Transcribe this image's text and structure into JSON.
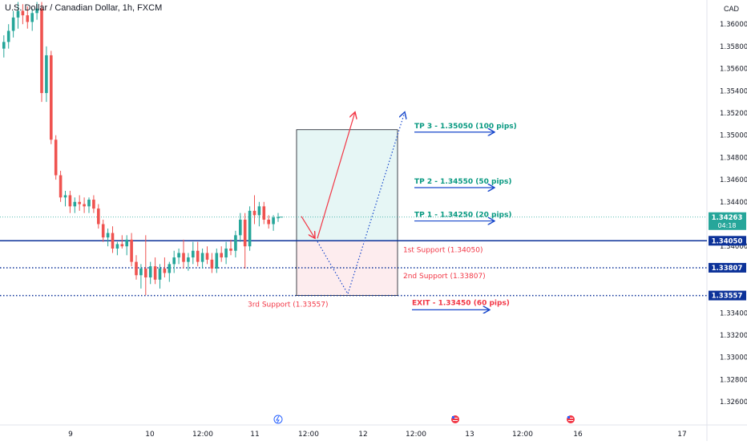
{
  "header": {
    "symbol_line": "U.S. Dollar / Canadian Dollar, 1h, FXCM",
    "currency": "CAD"
  },
  "colors": {
    "up": "#26a69a",
    "down": "#ef5350",
    "line_blue": "#0c3299",
    "arrow_red": "#f23645",
    "arrow_blue": "#1848cc",
    "tp_text": "#089981",
    "support_text": "#f23645",
    "target_box": "#e6f6f5",
    "stop_box": "#fdecee"
  },
  "chart_data": {
    "type": "candlestick",
    "symbol": "USDCAD",
    "interval": "1h",
    "y_axis": {
      "ticks": [
        "1.36000",
        "1.35800",
        "1.35600",
        "1.35400",
        "1.35200",
        "1.35000",
        "1.34800",
        "1.34600",
        "1.34400",
        "1.34000",
        "1.33400",
        "1.33200",
        "1.33000",
        "1.32800",
        "1.32600"
      ],
      "range": [
        1.325,
        1.3616
      ]
    },
    "x_axis": {
      "ticks": [
        "9",
        "10",
        "12:00",
        "11",
        "12:00",
        "12",
        "12:00",
        "13",
        "12:00",
        "16",
        "17"
      ]
    },
    "candles": [
      [
        1.3578,
        1.359,
        1.357,
        1.3584
      ],
      [
        1.3584,
        1.36,
        1.3578,
        1.3594
      ],
      [
        1.3594,
        1.3612,
        1.3588,
        1.3606
      ],
      [
        1.3606,
        1.362,
        1.3596,
        1.3612
      ],
      [
        1.3612,
        1.3618,
        1.36,
        1.3608
      ],
      [
        1.3608,
        1.3616,
        1.3596,
        1.3602
      ],
      [
        1.3602,
        1.3614,
        1.3594,
        1.361
      ],
      [
        1.361,
        1.362,
        1.3604,
        1.3614
      ],
      [
        1.3614,
        1.362,
        1.353,
        1.3538
      ],
      [
        1.3538,
        1.358,
        1.353,
        1.3572
      ],
      [
        1.3572,
        1.3576,
        1.3492,
        1.3496
      ],
      [
        1.3496,
        1.35,
        1.346,
        1.3464
      ],
      [
        1.3464,
        1.3468,
        1.344,
        1.3444
      ],
      [
        1.3444,
        1.345,
        1.3436,
        1.3446
      ],
      [
        1.3446,
        1.345,
        1.343,
        1.3436
      ],
      [
        1.3436,
        1.3444,
        1.343,
        1.344
      ],
      [
        1.344,
        1.3446,
        1.3432,
        1.3438
      ],
      [
        1.3438,
        1.3444,
        1.343,
        1.3436
      ],
      [
        1.3436,
        1.3444,
        1.343,
        1.3442
      ],
      [
        1.3442,
        1.3446,
        1.343,
        1.3434
      ],
      [
        1.3434,
        1.3438,
        1.3416,
        1.342
      ],
      [
        1.342,
        1.3424,
        1.3404,
        1.3408
      ],
      [
        1.3408,
        1.3416,
        1.34,
        1.3412
      ],
      [
        1.3412,
        1.3418,
        1.3394,
        1.3398
      ],
      [
        1.3398,
        1.3404,
        1.3392,
        1.3402
      ],
      [
        1.3402,
        1.341,
        1.3398,
        1.34
      ],
      [
        1.34,
        1.341,
        1.3392,
        1.3406
      ],
      [
        1.3406,
        1.3412,
        1.3382,
        1.3386
      ],
      [
        1.3386,
        1.3392,
        1.337,
        1.3374
      ],
      [
        1.3374,
        1.3384,
        1.3362,
        1.338
      ],
      [
        1.338,
        1.341,
        1.3356,
        1.3372
      ],
      [
        1.3372,
        1.3386,
        1.3366,
        1.3382
      ],
      [
        1.3382,
        1.339,
        1.3366,
        1.337
      ],
      [
        1.337,
        1.3384,
        1.3362,
        1.338
      ],
      [
        1.338,
        1.339,
        1.3372,
        1.3376
      ],
      [
        1.3376,
        1.3386,
        1.3368,
        1.3384
      ],
      [
        1.3384,
        1.3396,
        1.3376,
        1.339
      ],
      [
        1.339,
        1.3398,
        1.3384,
        1.3394
      ],
      [
        1.3394,
        1.3406,
        1.338,
        1.3386
      ],
      [
        1.3386,
        1.3394,
        1.3378,
        1.339
      ],
      [
        1.339,
        1.3404,
        1.3384,
        1.3396
      ],
      [
        1.3396,
        1.3404,
        1.3382,
        1.3386
      ],
      [
        1.3386,
        1.3398,
        1.338,
        1.3394
      ],
      [
        1.3394,
        1.34,
        1.3384,
        1.3388
      ],
      [
        1.3388,
        1.3394,
        1.3376,
        1.338
      ],
      [
        1.338,
        1.3398,
        1.3376,
        1.3394
      ],
      [
        1.3394,
        1.34,
        1.3386,
        1.339
      ],
      [
        1.339,
        1.3404,
        1.3384,
        1.3398
      ],
      [
        1.3398,
        1.3406,
        1.3392,
        1.3396
      ],
      [
        1.3396,
        1.3414,
        1.339,
        1.341
      ],
      [
        1.341,
        1.343,
        1.3404,
        1.3424
      ],
      [
        1.3424,
        1.343,
        1.338,
        1.34
      ],
      [
        1.34,
        1.3436,
        1.3396,
        1.3432
      ],
      [
        1.3432,
        1.3446,
        1.342,
        1.3428
      ],
      [
        1.3428,
        1.344,
        1.3418,
        1.3436
      ],
      [
        1.3436,
        1.344,
        1.342,
        1.3424
      ],
      [
        1.3424,
        1.3428,
        1.3416,
        1.342
      ],
      [
        1.342,
        1.3428,
        1.3414,
        1.3426
      ],
      [
        1.3426,
        1.343,
        1.3422,
        1.3426
      ]
    ],
    "current_price": "1.34263",
    "countdown": "04:18",
    "levels": [
      {
        "value": 1.3405,
        "price_label": "1.34050",
        "label": "1st Support (1.34050)",
        "style": "solid"
      },
      {
        "value": 1.33807,
        "price_label": "1.33807",
        "label": "2nd Support (1.33807)",
        "style": "dotted"
      },
      {
        "value": 1.33557,
        "price_label": "1.33557",
        "label": "3rd Support (1.33557)",
        "style": "dotted"
      }
    ],
    "targets": [
      {
        "value": 1.3505,
        "label": "TP 3 - 1.35050 (100 pips)"
      },
      {
        "value": 1.3455,
        "label": "TP 2 - 1.34550 (50 pips)"
      },
      {
        "value": 1.3425,
        "label": "TP 1 - 1.34250 (20 pips)"
      }
    ],
    "exit": {
      "value": 1.3345,
      "label": "EXIT - 1.33450 (60 pips)"
    },
    "position_box": {
      "entry": 1.3405,
      "target": 1.3505,
      "stop": 1.33557
    }
  }
}
